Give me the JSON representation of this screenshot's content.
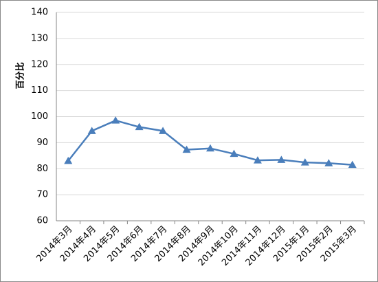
{
  "chart_data": {
    "type": "line",
    "y_label": "百分比",
    "categories": [
      "2014年3月",
      "2014年4月",
      "2014年5月",
      "2014年6月",
      "2014年7月",
      "2014年8月",
      "2014年9月",
      "2014年10月",
      "2014年11月",
      "2014年12月",
      "2015年1月",
      "2015年2月",
      "2015年3月"
    ],
    "series": [
      {
        "color": "#4a7ebb",
        "values": [
          83,
          94.5,
          98.5,
          96,
          94.5,
          87.3,
          87.8,
          85.7,
          83.2,
          83.4,
          82.4,
          82.1,
          81.5
        ]
      }
    ],
    "ylim": [
      60,
      140
    ],
    "yticks": [
      60,
      70,
      80,
      90,
      100,
      110,
      120,
      130,
      140
    ],
    "grid": true,
    "marker": "triangle"
  }
}
